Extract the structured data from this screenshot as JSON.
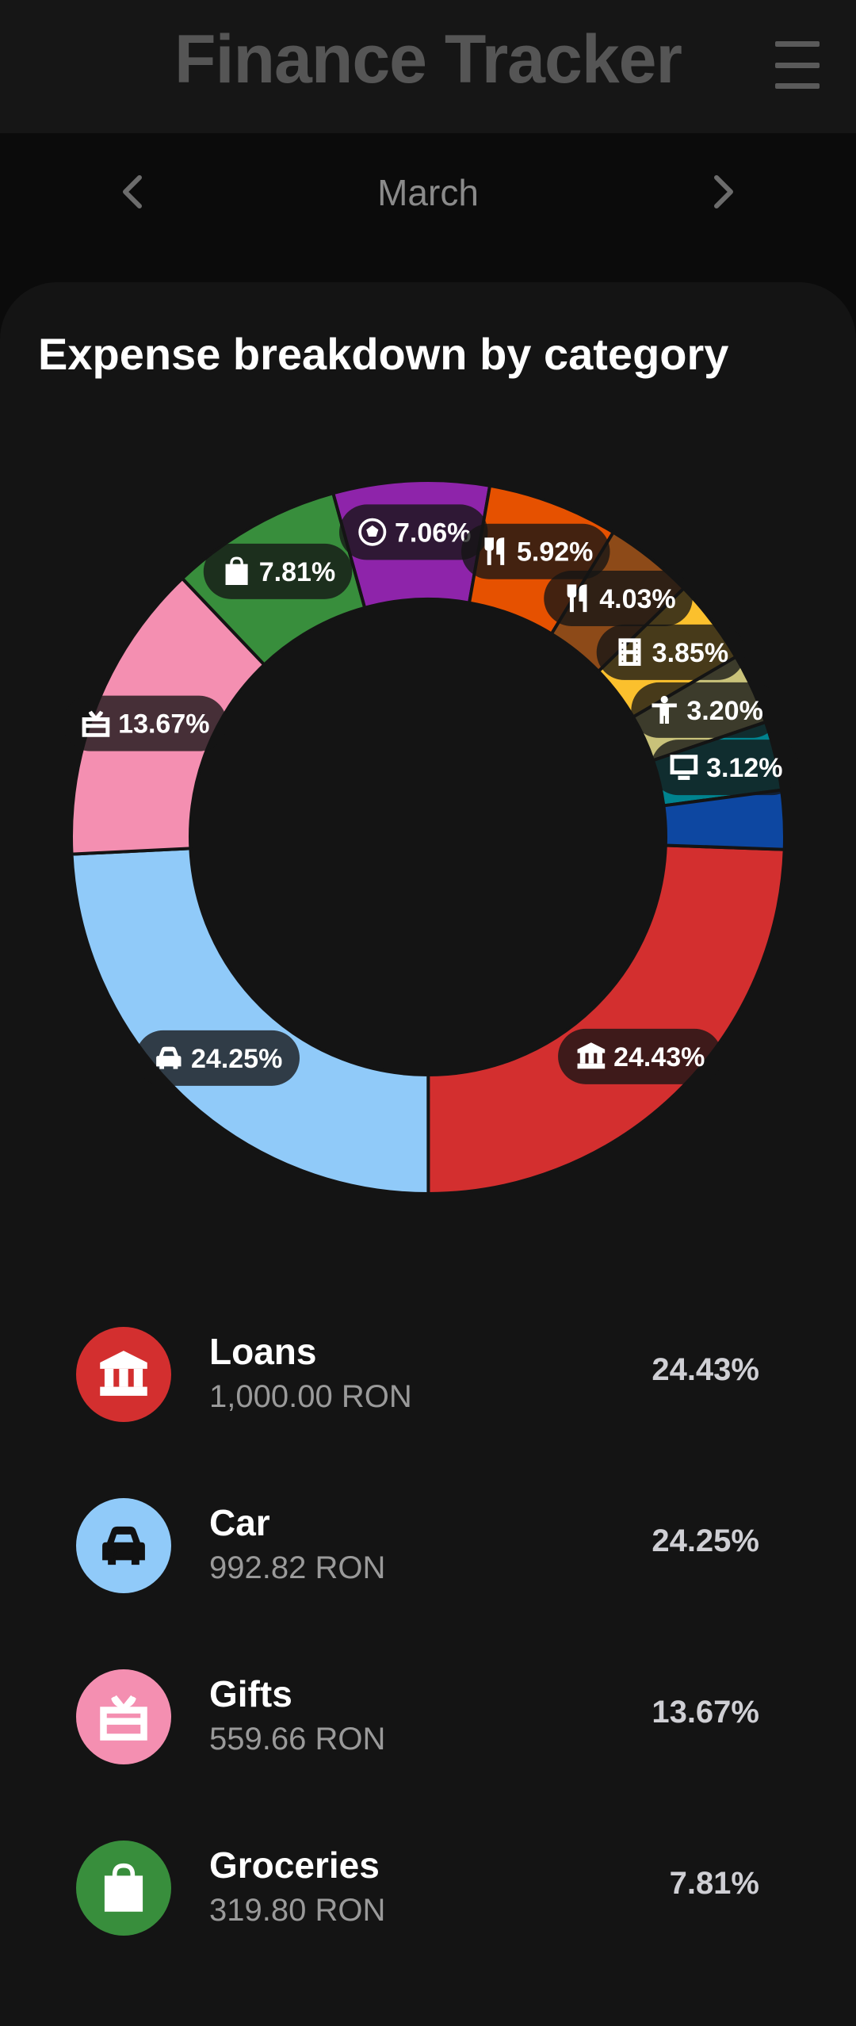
{
  "header": {
    "title": "Finance Tracker"
  },
  "month_nav": {
    "month": "March"
  },
  "card": {
    "title": "Expense breakdown by category"
  },
  "chart_data": {
    "type": "pie",
    "style": "donut",
    "slices": [
      {
        "percent": 24.43,
        "label": "24.43%",
        "color": "#d32f2f",
        "icon": "bank-icon"
      },
      {
        "percent": 24.25,
        "label": "24.25%",
        "color": "#90caf9",
        "icon": "car-icon"
      },
      {
        "percent": 13.67,
        "label": "13.67%",
        "color": "#f48fb1",
        "icon": "gift-icon"
      },
      {
        "percent": 7.81,
        "label": "7.81%",
        "color": "#388e3c",
        "icon": "shopping-bag-icon"
      },
      {
        "percent": 7.06,
        "label": "7.06%",
        "color": "#8e24aa",
        "icon": "soccer-ball-icon"
      },
      {
        "percent": 5.92,
        "label": "5.92%",
        "color": "#e65100",
        "icon": "fork-knife-icon"
      },
      {
        "percent": 4.03,
        "label": "4.03%",
        "color": "#8d4a18",
        "icon": "fork-knife-icon"
      },
      {
        "percent": 3.85,
        "label": "3.85%",
        "color": "#fbc02d",
        "icon": "film-icon"
      },
      {
        "percent": 3.2,
        "label": "3.20%",
        "color": "#c9c27a",
        "icon": "person-icon"
      },
      {
        "percent": 3.12,
        "label": "3.12%",
        "color": "#00838f",
        "icon": "tv-icon"
      },
      {
        "percent": 2.66,
        "label": "",
        "color": "#0d47a1",
        "icon": ""
      }
    ]
  },
  "legend": [
    {
      "name": "Loans",
      "amount": "1,000.00 RON",
      "percent": "24.43%",
      "color": "#d32f2f",
      "icon": "bank-icon"
    },
    {
      "name": "Car",
      "amount": "992.82 RON",
      "percent": "24.25%",
      "color": "#90caf9",
      "icon": "car-icon"
    },
    {
      "name": "Gifts",
      "amount": "559.66 RON",
      "percent": "13.67%",
      "color": "#f48fb1",
      "icon": "gift-icon"
    },
    {
      "name": "Groceries",
      "amount": "319.80 RON",
      "percent": "7.81%",
      "color": "#388e3c",
      "icon": "shopping-bag-icon"
    }
  ]
}
